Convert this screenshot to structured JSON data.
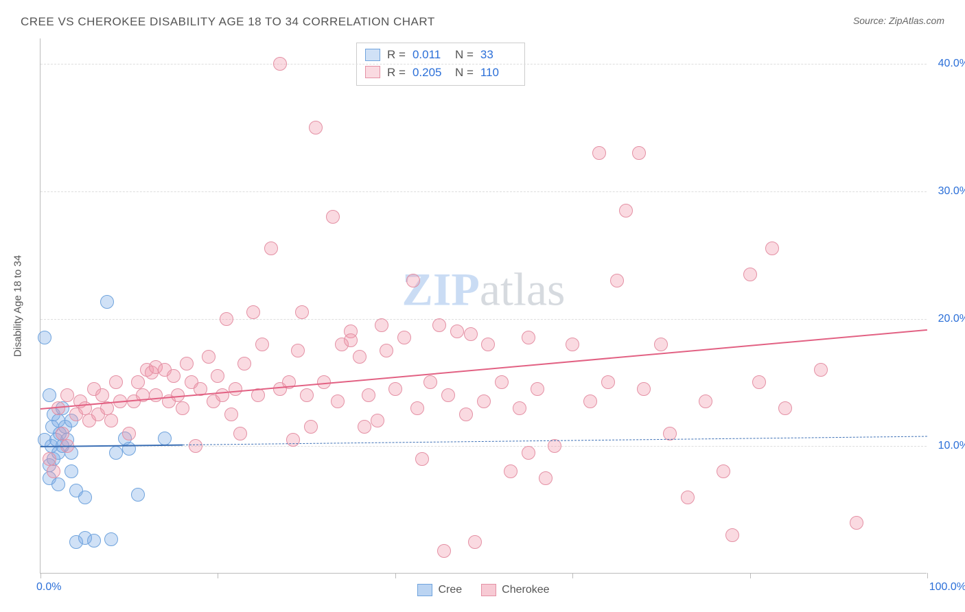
{
  "title": "CREE VS CHEROKEE DISABILITY AGE 18 TO 34 CORRELATION CHART",
  "source": "Source: ZipAtlas.com",
  "y_axis_label": "Disability Age 18 to 34",
  "watermark_zip": "ZIP",
  "watermark_atlas": "atlas",
  "chart": {
    "type": "scatter",
    "xlim": [
      0,
      100
    ],
    "ylim": [
      0,
      42
    ],
    "x_ticks": [
      0,
      20,
      40,
      60,
      80,
      100
    ],
    "x_tick_labels": [
      "0.0%",
      "",
      "",
      "",
      "",
      "100.0%"
    ],
    "y_grid": [
      10,
      20,
      30,
      40
    ],
    "y_tick_labels": [
      "10.0%",
      "20.0%",
      "30.0%",
      "40.0%"
    ],
    "background_color": "#ffffff",
    "grid_color": "#dddddd",
    "axis_color": "#bbbbbb",
    "tick_label_color": "#2b6fd8",
    "marker_radius": 10,
    "series": [
      {
        "name": "Cree",
        "fill": "rgba(120,170,230,0.35)",
        "stroke": "#6fa3dd",
        "trend_color": "#3b6fb5",
        "R": "0.011",
        "N": "33",
        "trend": {
          "x1": 0,
          "y1": 10.0,
          "x2": 100,
          "y2": 10.8,
          "solid_to_x": 16,
          "has_dashed_extension": true
        },
        "points": [
          [
            0.5,
            18.5
          ],
          [
            0.5,
            10.5
          ],
          [
            1.0,
            14.0
          ],
          [
            1.2,
            10.0
          ],
          [
            1.3,
            11.5
          ],
          [
            1.5,
            12.5
          ],
          [
            1.5,
            9.0
          ],
          [
            1.8,
            10.5
          ],
          [
            2.0,
            12.0
          ],
          [
            2.0,
            9.5
          ],
          [
            1.0,
            8.5
          ],
          [
            2.2,
            11.0
          ],
          [
            2.5,
            10.0
          ],
          [
            2.5,
            13.0
          ],
          [
            2.8,
            11.5
          ],
          [
            3.0,
            10.5
          ],
          [
            3.5,
            9.5
          ],
          [
            3.5,
            12.0
          ],
          [
            4.0,
            6.5
          ],
          [
            4.0,
            2.5
          ],
          [
            5.0,
            2.8
          ],
          [
            5.0,
            6.0
          ],
          [
            6.0,
            2.6
          ],
          [
            7.5,
            21.3
          ],
          [
            8.0,
            2.7
          ],
          [
            8.5,
            9.5
          ],
          [
            9.5,
            10.6
          ],
          [
            10.0,
            9.8
          ],
          [
            11.0,
            6.2
          ],
          [
            14.0,
            10.6
          ],
          [
            3.5,
            8.0
          ],
          [
            1.0,
            7.5
          ],
          [
            2.0,
            7.0
          ]
        ]
      },
      {
        "name": "Cherokee",
        "fill": "rgba(240,150,170,0.35)",
        "stroke": "#e490a4",
        "trend_color": "#e26183",
        "R": "0.205",
        "N": "110",
        "trend": {
          "x1": 0,
          "y1": 13.0,
          "x2": 100,
          "y2": 19.2,
          "solid_to_x": 100,
          "has_dashed_extension": false
        },
        "points": [
          [
            1.0,
            9.0
          ],
          [
            1.5,
            8.0
          ],
          [
            2.0,
            13.0
          ],
          [
            2.5,
            11.0
          ],
          [
            3.0,
            10.0
          ],
          [
            3.0,
            14.0
          ],
          [
            4.0,
            12.5
          ],
          [
            4.5,
            13.5
          ],
          [
            5.0,
            13.0
          ],
          [
            5.5,
            12.0
          ],
          [
            6.0,
            14.5
          ],
          [
            6.5,
            12.5
          ],
          [
            7.0,
            14.0
          ],
          [
            7.5,
            13.0
          ],
          [
            8.0,
            12.0
          ],
          [
            8.5,
            15.0
          ],
          [
            9.0,
            13.5
          ],
          [
            10.0,
            11.0
          ],
          [
            10.5,
            13.5
          ],
          [
            11.0,
            15.0
          ],
          [
            11.5,
            14.0
          ],
          [
            12.0,
            16.0
          ],
          [
            12.5,
            15.8
          ],
          [
            13.0,
            16.2
          ],
          [
            13.0,
            14.0
          ],
          [
            14.0,
            16.0
          ],
          [
            14.5,
            13.5
          ],
          [
            15.0,
            15.5
          ],
          [
            15.5,
            14.0
          ],
          [
            16.0,
            13.0
          ],
          [
            16.5,
            16.5
          ],
          [
            17.0,
            15.0
          ],
          [
            18.0,
            14.5
          ],
          [
            19.0,
            17.0
          ],
          [
            19.5,
            13.5
          ],
          [
            20.0,
            15.5
          ],
          [
            20.5,
            14.0
          ],
          [
            21.0,
            20.0
          ],
          [
            22.0,
            14.5
          ],
          [
            22.5,
            11.0
          ],
          [
            23.0,
            16.5
          ],
          [
            24.0,
            20.5
          ],
          [
            24.5,
            14.0
          ],
          [
            25.0,
            18.0
          ],
          [
            26.0,
            25.5
          ],
          [
            27.0,
            40.0
          ],
          [
            27.0,
            14.5
          ],
          [
            28.0,
            15.0
          ],
          [
            28.5,
            10.5
          ],
          [
            29.0,
            17.5
          ],
          [
            29.5,
            20.5
          ],
          [
            30.0,
            14.0
          ],
          [
            30.5,
            11.5
          ],
          [
            31.0,
            35.0
          ],
          [
            32.0,
            15.0
          ],
          [
            33.0,
            28.0
          ],
          [
            33.5,
            13.5
          ],
          [
            34.0,
            18.0
          ],
          [
            35.0,
            19.0
          ],
          [
            35.0,
            18.3
          ],
          [
            36.0,
            17.0
          ],
          [
            37.0,
            14.0
          ],
          [
            38.0,
            12.0
          ],
          [
            38.5,
            19.5
          ],
          [
            39.0,
            17.5
          ],
          [
            40.0,
            14.5
          ],
          [
            41.0,
            18.5
          ],
          [
            42.0,
            23.0
          ],
          [
            42.5,
            13.0
          ],
          [
            43.0,
            9.0
          ],
          [
            44.0,
            15.0
          ],
          [
            45.0,
            19.5
          ],
          [
            45.5,
            1.8
          ],
          [
            46.0,
            14.0
          ],
          [
            47.0,
            19.0
          ],
          [
            48.0,
            12.5
          ],
          [
            49.0,
            2.5
          ],
          [
            50.0,
            13.5
          ],
          [
            50.5,
            18.0
          ],
          [
            52.0,
            15.0
          ],
          [
            53.0,
            8.0
          ],
          [
            54.0,
            13.0
          ],
          [
            55.0,
            9.5
          ],
          [
            55.0,
            18.5
          ],
          [
            56.0,
            14.5
          ],
          [
            57.0,
            7.5
          ],
          [
            58.0,
            10.0
          ],
          [
            60.0,
            18.0
          ],
          [
            62.0,
            13.5
          ],
          [
            63.0,
            33.0
          ],
          [
            64.0,
            15.0
          ],
          [
            65.0,
            23.0
          ],
          [
            66.0,
            28.5
          ],
          [
            67.5,
            33.0
          ],
          [
            68.0,
            14.5
          ],
          [
            70.0,
            18.0
          ],
          [
            71.0,
            11.0
          ],
          [
            73.0,
            6.0
          ],
          [
            75.0,
            13.5
          ],
          [
            77.0,
            8.0
          ],
          [
            78.0,
            3.0
          ],
          [
            80.0,
            23.5
          ],
          [
            81.0,
            15.0
          ],
          [
            82.5,
            25.5
          ],
          [
            84.0,
            13.0
          ],
          [
            88.0,
            16.0
          ],
          [
            92.0,
            4.0
          ],
          [
            48.5,
            18.8
          ],
          [
            36.5,
            11.5
          ],
          [
            21.5,
            12.5
          ],
          [
            17.5,
            10.0
          ]
        ]
      }
    ]
  },
  "bottom_legend": [
    {
      "label": "Cree",
      "fill": "rgba(120,170,230,0.5)",
      "stroke": "#6fa3dd"
    },
    {
      "label": "Cherokee",
      "fill": "rgba(240,150,170,0.5)",
      "stroke": "#e490a4"
    }
  ]
}
